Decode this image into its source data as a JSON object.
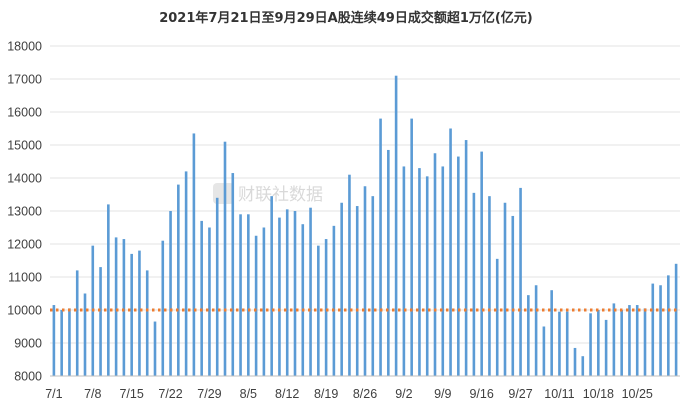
{
  "chart_data": {
    "type": "bar",
    "title": "2021年7月21日至9月29日A股连续49日成交额超1万亿(亿元)",
    "ylim": [
      8000,
      18000
    ],
    "yticks": [
      8000,
      9000,
      10000,
      11000,
      12000,
      13000,
      14000,
      15000,
      16000,
      17000,
      18000
    ],
    "grid": true,
    "reference_line": {
      "value": 10000,
      "color": "#ed7d31",
      "style": "dotted"
    },
    "bar_color": "#5b9bd5",
    "x_tick_labels": [
      "7/1",
      "7/8",
      "7/15",
      "7/22",
      "7/29",
      "8/5",
      "8/12",
      "8/19",
      "8/26",
      "9/2",
      "9/9",
      "9/16",
      "9/27",
      "10/11",
      "10/18",
      "10/25"
    ],
    "x_tick_positions": [
      0,
      5,
      10,
      15,
      20,
      25,
      30,
      35,
      40,
      45,
      50,
      55,
      60,
      65,
      70,
      75
    ],
    "values": [
      10150,
      10000,
      10050,
      11200,
      10500,
      11950,
      11300,
      13200,
      12200,
      12150,
      11700,
      11800,
      11200,
      9650,
      12100,
      13000,
      13800,
      14200,
      15350,
      12700,
      12500,
      13400,
      15100,
      14150,
      12900,
      12900,
      12250,
      12500,
      13450,
      12800,
      13050,
      13000,
      12600,
      13100,
      11950,
      12150,
      12550,
      13250,
      14100,
      13150,
      13750,
      13450,
      15800,
      14850,
      17100,
      14350,
      15800,
      14300,
      14050,
      14750,
      14350,
      15500,
      14650,
      15150,
      13550,
      14800,
      13450,
      11550,
      13250,
      12850,
      13700,
      10450,
      10750,
      9500,
      10600,
      9950,
      9950,
      8850,
      8600,
      9900,
      10000,
      9700,
      10200,
      10000,
      10150,
      10150,
      10050,
      10800,
      10750,
      11050,
      11400
    ],
    "watermark": "财联社数据"
  }
}
